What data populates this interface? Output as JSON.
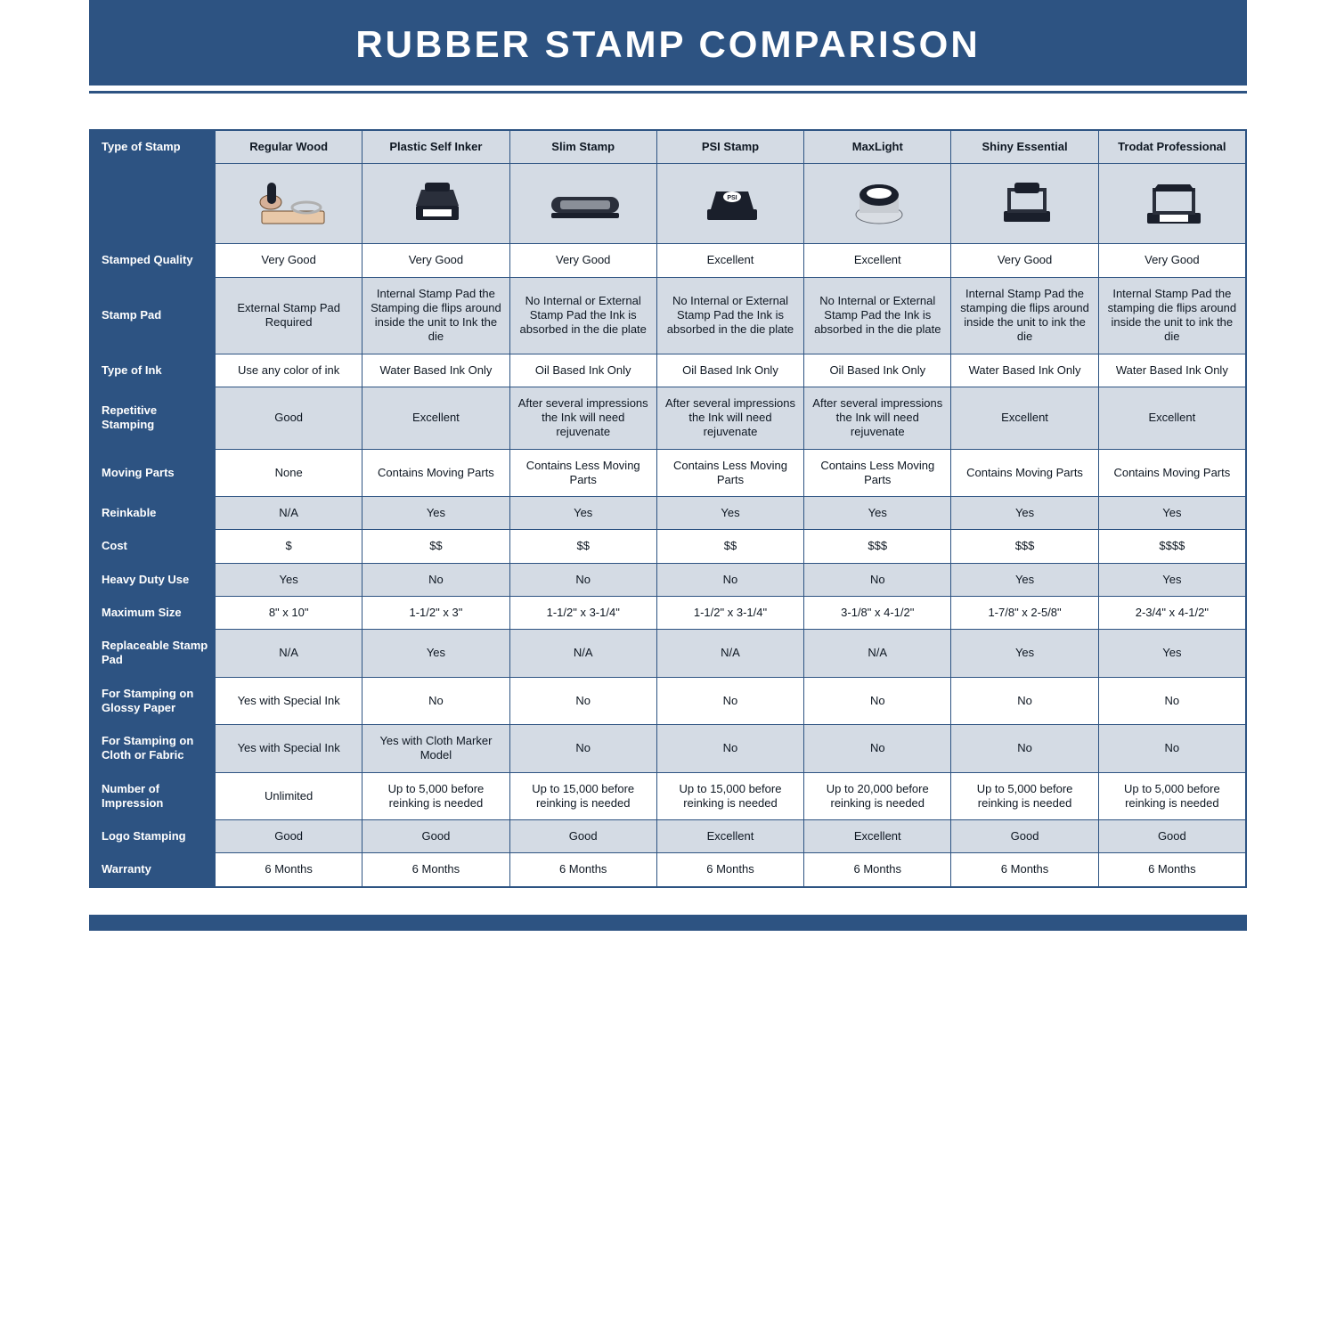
{
  "title": "RUBBER STAMP COMPARISON",
  "colors": {
    "brand": "#2d5382",
    "shade": "#d4dbe4",
    "text": "#0e1722",
    "white": "#ffffff"
  },
  "columns": [
    {
      "label": "Regular Wood"
    },
    {
      "label": "Plastic Self Inker"
    },
    {
      "label": "Slim Stamp"
    },
    {
      "label": "PSI Stamp"
    },
    {
      "label": "MaxLight"
    },
    {
      "label": "Shiny Essential"
    },
    {
      "label": "Trodat Professional"
    }
  ],
  "cornerLabel": "Type of Stamp",
  "rows": [
    {
      "h": "Stamped Quality",
      "shade": false,
      "c": [
        "Very Good",
        "Very Good",
        "Very Good",
        "Excellent",
        "Excellent",
        "Very Good",
        "Very Good"
      ]
    },
    {
      "h": "Stamp Pad",
      "shade": true,
      "c": [
        "External Stamp Pad Required",
        "Internal Stamp Pad the Stamping die flips around inside the unit to Ink the die",
        "No Internal or External Stamp Pad the Ink is absorbed in the die plate",
        "No Internal or External Stamp Pad the Ink is absorbed in the die plate",
        "No Internal or External Stamp Pad the Ink is absorbed in the die plate",
        "Internal Stamp Pad the stamping die flips around inside the unit to ink the die",
        "Internal Stamp Pad the stamping die flips around inside the unit to ink the die"
      ]
    },
    {
      "h": "Type of Ink",
      "shade": false,
      "c": [
        "Use any color of ink",
        "Water Based Ink Only",
        "Oil Based Ink Only",
        "Oil Based Ink Only",
        "Oil Based Ink Only",
        "Water Based Ink Only",
        "Water Based Ink Only"
      ]
    },
    {
      "h": "Repetitive Stamping",
      "shade": true,
      "c": [
        "Good",
        "Excellent",
        "After several impressions the Ink will need rejuvenate",
        "After several impressions the Ink will need rejuvenate",
        "After several impressions the Ink will need rejuvenate",
        "Excellent",
        "Excellent"
      ]
    },
    {
      "h": "Moving Parts",
      "shade": false,
      "c": [
        "None",
        "Contains Moving Parts",
        "Contains Less Moving Parts",
        "Contains Less Moving Parts",
        "Contains Less Moving Parts",
        "Contains Moving Parts",
        "Contains Moving Parts"
      ]
    },
    {
      "h": "Reinkable",
      "shade": true,
      "c": [
        "N/A",
        "Yes",
        "Yes",
        "Yes",
        "Yes",
        "Yes",
        "Yes"
      ]
    },
    {
      "h": "Cost",
      "shade": false,
      "c": [
        "$",
        "$$",
        "$$",
        "$$",
        "$$$",
        "$$$",
        "$$$$"
      ]
    },
    {
      "h": "Heavy Duty Use",
      "shade": true,
      "c": [
        "Yes",
        "No",
        "No",
        "No",
        "No",
        "Yes",
        "Yes"
      ]
    },
    {
      "h": "Maximum Size",
      "shade": false,
      "c": [
        "8\" x 10\"",
        "1-1/2\" x 3\"",
        "1-1/2\" x 3-1/4\"",
        "1-1/2\" x 3-1/4\"",
        "3-1/8\" x 4-1/2\"",
        "1-7/8\" x 2-5/8\"",
        "2-3/4\" x 4-1/2\""
      ]
    },
    {
      "h": "Replaceable Stamp Pad",
      "shade": true,
      "c": [
        "N/A",
        "Yes",
        "N/A",
        "N/A",
        "N/A",
        "Yes",
        "Yes"
      ]
    },
    {
      "h": "For Stamping on Glossy Paper",
      "shade": false,
      "c": [
        "Yes with Special Ink",
        "No",
        "No",
        "No",
        "No",
        "No",
        "No"
      ]
    },
    {
      "h": "For Stamping on Cloth or Fabric",
      "shade": true,
      "c": [
        "Yes with Special Ink",
        "Yes with Cloth Marker Model",
        "No",
        "No",
        "No",
        "No",
        "No"
      ]
    },
    {
      "h": "Number of Impression",
      "shade": false,
      "c": [
        "Unlimited",
        "Up to 5,000 before reinking is needed",
        "Up to 15,000 before reinking is needed",
        "Up to 15,000 before reinking is needed",
        "Up to 20,000 before reinking is needed",
        "Up to 5,000 before reinking is needed",
        "Up to 5,000 before reinking is needed"
      ]
    },
    {
      "h": "Logo Stamping",
      "shade": true,
      "c": [
        "Good",
        "Good",
        "Good",
        "Excellent",
        "Excellent",
        "Good",
        "Good"
      ]
    },
    {
      "h": "Warranty",
      "shade": false,
      "c": [
        "6 Months",
        "6 Months",
        "6 Months",
        "6 Months",
        "6 Months",
        "6 Months",
        "6 Months"
      ]
    }
  ]
}
